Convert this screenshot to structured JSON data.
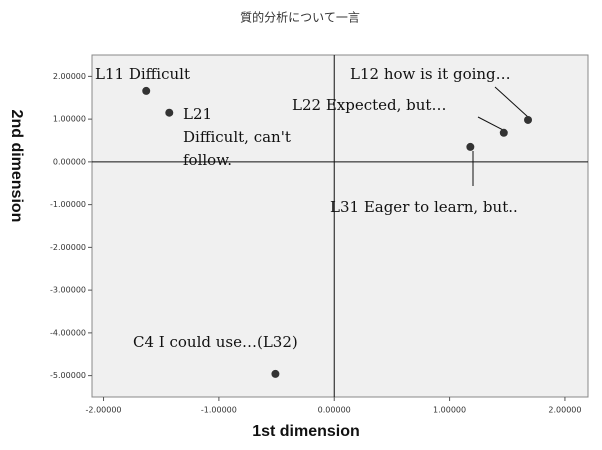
{
  "chart_data": {
    "type": "scatter",
    "title": "質的分析について一言",
    "x_label": "1st dimension",
    "y_label": "2nd dimension",
    "xlim": [
      -2.1,
      2.2
    ],
    "ylim": [
      -5.5,
      2.5
    ],
    "xticks": [
      {
        "value": -2,
        "label": "-2.00000"
      },
      {
        "value": -1,
        "label": "-1.00000"
      },
      {
        "value": 0,
        "label": "0.00000"
      },
      {
        "value": 1,
        "label": "1.00000"
      },
      {
        "value": 2,
        "label": "2.00000"
      }
    ],
    "yticks": [
      {
        "value": 2,
        "label": "2.00000"
      },
      {
        "value": 1,
        "label": "1.00000"
      },
      {
        "value": 0,
        "label": "0.00000"
      },
      {
        "value": -1,
        "label": "-1.00000"
      },
      {
        "value": -2,
        "label": "-2.00000"
      },
      {
        "value": -3,
        "label": "-3.00000"
      },
      {
        "value": -4,
        "label": "-4.00000"
      },
      {
        "value": -5,
        "label": "-5.00000"
      }
    ],
    "color": "#333333",
    "x": [
      -1.63,
      -1.43,
      1.68,
      1.47,
      1.18,
      -0.51
    ],
    "values": [
      1.66,
      1.15,
      0.98,
      0.68,
      0.35,
      -4.96
    ],
    "labels": [
      [
        "L11 Difficult"
      ],
      [
        "L21",
        "Difficult, can't",
        "follow."
      ],
      [
        "L12 how is it going…"
      ],
      [
        "L22 Expected, but…"
      ],
      [
        "L31 Eager to learn, but.."
      ],
      [
        "C4 I could use…(L32)"
      ]
    ]
  }
}
